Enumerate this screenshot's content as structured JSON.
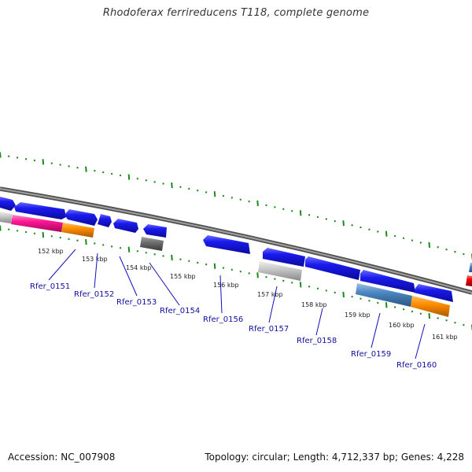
{
  "title": "Rhodoferax ferrireducens T118, complete genome",
  "footer": {
    "accession": "Accession: NC_007908",
    "summary": "Topology: circular; Length: 4,712,337 bp; Genes: 4,228"
  },
  "colors": {
    "backbone": "#808080",
    "tick": "#1a8a1a",
    "cds": "#1a1aee",
    "label": "#1010a0"
  },
  "kbp_labels": [
    "152 kbp",
    "153 kbp",
    "154 kbp",
    "155 kbp",
    "156 kbp",
    "157 kbp",
    "158 kbp",
    "159 kbp",
    "160 kbp",
    "161 kbp"
  ],
  "gene_labels": [
    "Rfer_0151",
    "Rfer_0152",
    "Rfer_0153",
    "Rfer_0154",
    "Rfer_0156",
    "Rfer_0157",
    "Rfer_0158",
    "Rfer_0159",
    "Rfer_0160"
  ]
}
